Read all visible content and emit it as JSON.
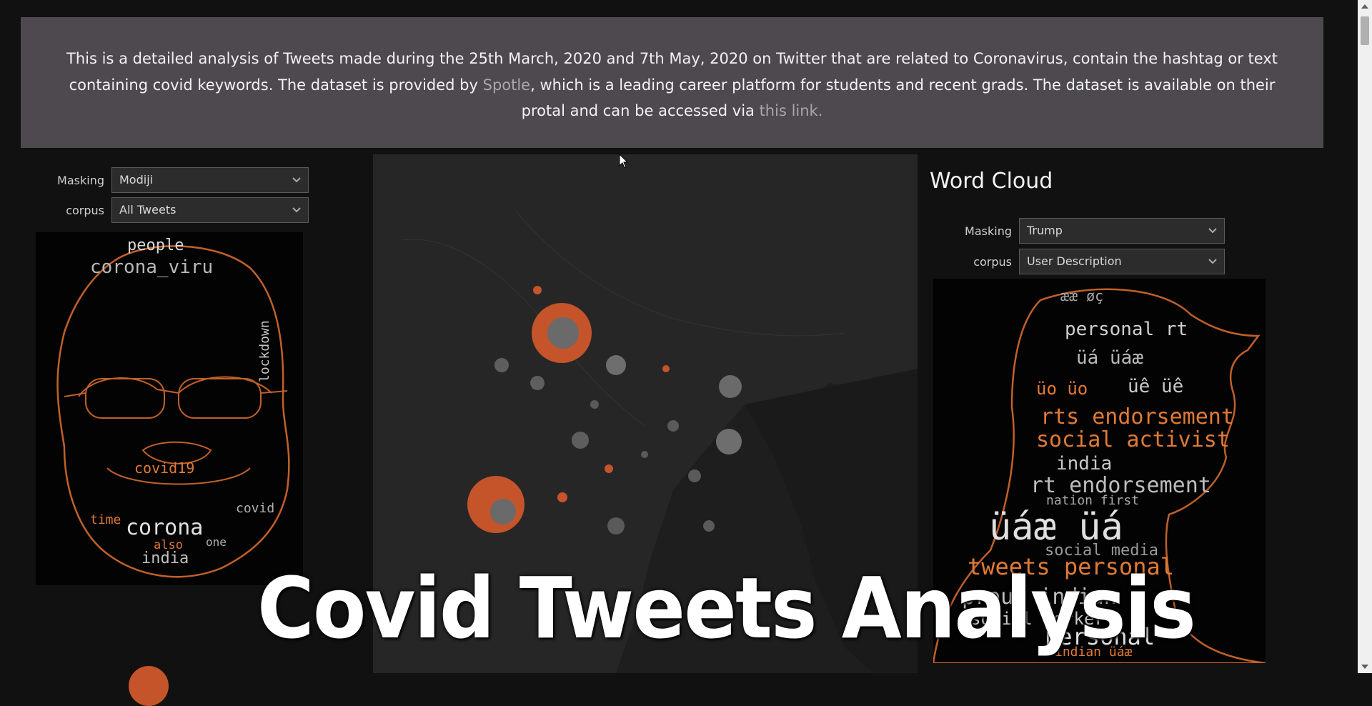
{
  "banner": {
    "text_before": "This is a detailed analysis of Tweets made during the 25th March, 2020 and 7th May, 2020 on Twitter that are related to Coronavirus, contain the hashtag or text containing covid keywords. The dataset is provided by ",
    "spotle_link": "Spotle",
    "text_middle": ", which is a leading career platform for students and recent grads. The dataset is available on their protal and can be accessed via ",
    "this_link": "this link."
  },
  "left_controls": {
    "masking_label": "Masking",
    "masking_value": "Modiji",
    "corpus_label": "corpus",
    "corpus_value": "All Tweets"
  },
  "right_section": {
    "title": "Word Cloud",
    "masking_label": "Masking",
    "masking_value": "Trump",
    "corpus_label": "corpus",
    "corpus_value": "User Description"
  },
  "left_cloud_words": [
    {
      "text": "people",
      "color": "#d8d8d8"
    },
    {
      "text": "corona_viru",
      "color": "#b8b8b8"
    },
    {
      "text": "lockdown",
      "color": "#c8c8c8"
    },
    {
      "text": "covid19",
      "color": "#e07a35"
    },
    {
      "text": "covid",
      "color": "#b0b0b0"
    },
    {
      "text": "time",
      "color": "#e07a35"
    },
    {
      "text": "corona",
      "color": "#e0e0e0"
    },
    {
      "text": "also",
      "color": "#e07a35"
    },
    {
      "text": "one",
      "color": "#b0b0b0"
    },
    {
      "text": "india",
      "color": "#c0c0c0"
    }
  ],
  "right_cloud_words": [
    {
      "text": "ææ øç",
      "color": "#a8a8a8"
    },
    {
      "text": "personal rt",
      "color": "#d0d0d0"
    },
    {
      "text": "üá üáæ",
      "color": "#b8b8b8"
    },
    {
      "text": "üo üo",
      "color": "#e07a35"
    },
    {
      "text": "üê üê",
      "color": "#c8c8c8"
    },
    {
      "text": "rts endorsement",
      "color": "#e07a35"
    },
    {
      "text": "social activist",
      "color": "#e07a35"
    },
    {
      "text": "india",
      "color": "#c8c8c8"
    },
    {
      "text": "rt endorsement",
      "color": "#bdbdbd"
    },
    {
      "text": "nation first",
      "color": "#a8a8a8"
    },
    {
      "text": "üáæ üá",
      "color": "#e0e0e0"
    },
    {
      "text": "social media",
      "color": "#9a9a9a"
    },
    {
      "text": "tweets personal",
      "color": "#e07a35"
    },
    {
      "text": "proud indian",
      "color": "#c0c0c0"
    },
    {
      "text": "social worker",
      "color": "#c8c8c8"
    },
    {
      "text": "personal",
      "color": "#e0e0e0"
    },
    {
      "text": "indian üáæ",
      "color": "#e07a35"
    }
  ],
  "overlay": {
    "title": "Covid Tweets Analysis"
  },
  "colors": {
    "accent": "#e0662f",
    "banner_bg": "#4d494f",
    "page_bg": "#111111"
  }
}
